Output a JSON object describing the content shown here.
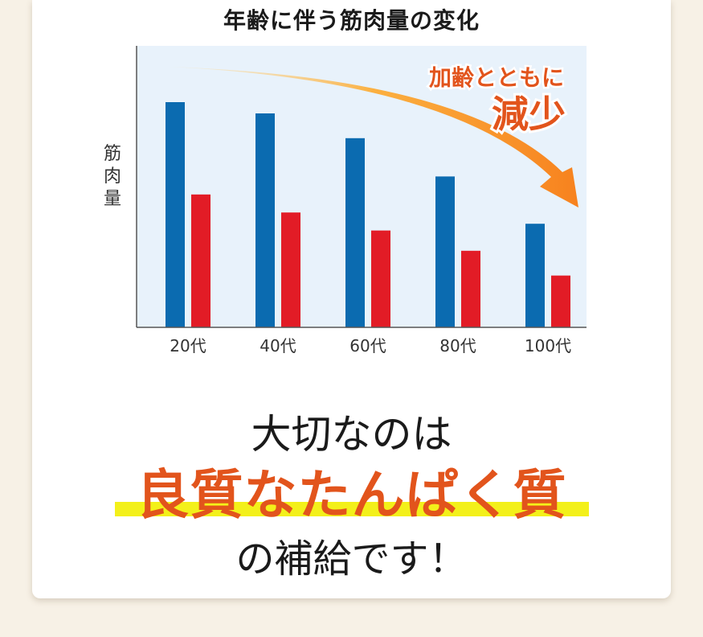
{
  "chart_data": {
    "type": "bar",
    "title": "年齢に伴う筋肉量の変化",
    "ylabel": "筋肉量",
    "xlabel": "",
    "categories": [
      "20代",
      "40代",
      "60代",
      "80代",
      "100代"
    ],
    "series": [
      {
        "color": "#0b6bb0",
        "values": [
          100,
          95,
          84,
          67,
          46
        ]
      },
      {
        "color": "#e21c26",
        "values": [
          59,
          51,
          43,
          34,
          23
        ]
      }
    ],
    "ylim": [
      0,
      125
    ],
    "grid": false,
    "annotation": {
      "line1": "加齢とともに",
      "line2": "減少",
      "color": "#e2541c"
    }
  },
  "message": {
    "line1": "大切なのは",
    "line2": "良質なたんぱく質",
    "line3": "の補給です！"
  }
}
